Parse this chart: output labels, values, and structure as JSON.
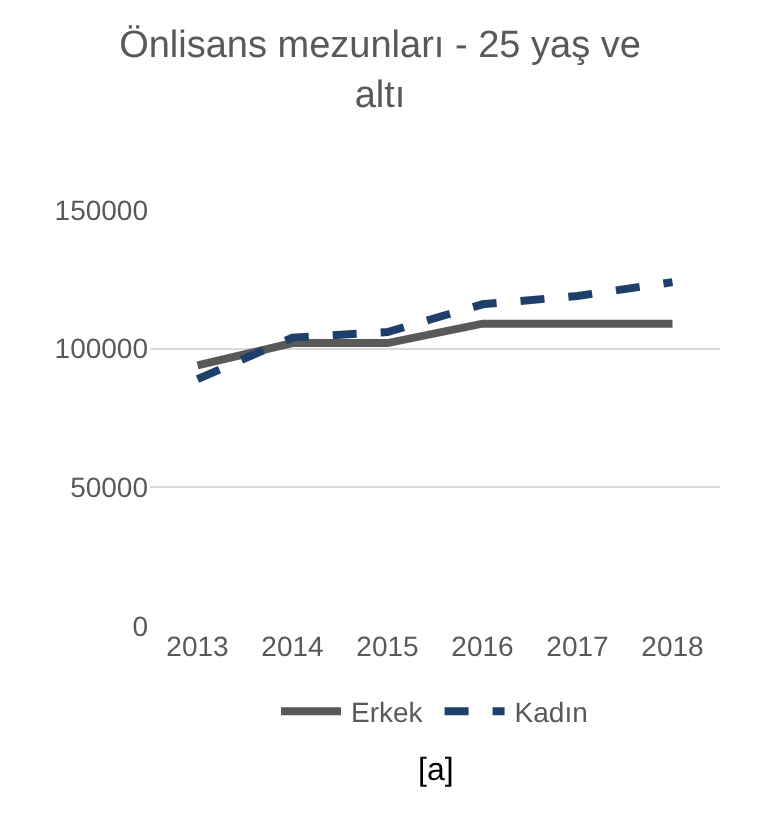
{
  "chart_data": {
    "type": "line",
    "title": "Önlisans mezunları - 25 yaş ve altı",
    "categories": [
      "2013",
      "2014",
      "2015",
      "2016",
      "2017",
      "2018"
    ],
    "series": [
      {
        "name": "Erkek",
        "color": "#595959",
        "values": [
          94000,
          102000,
          102000,
          109000,
          109000,
          109000
        ],
        "line_style": "solid"
      },
      {
        "name": "Kadın",
        "color": "#1f3f6b",
        "values": [
          89000,
          104000,
          106000,
          116000,
          119000,
          124000
        ],
        "line_style": "dashed"
      }
    ],
    "ylim": [
      0,
      150000
    ],
    "yticks": [
      0,
      50000,
      100000,
      150000
    ],
    "grid": "y",
    "legend": "bottom",
    "marker": "none",
    "annotations": [
      "[a]"
    ]
  }
}
